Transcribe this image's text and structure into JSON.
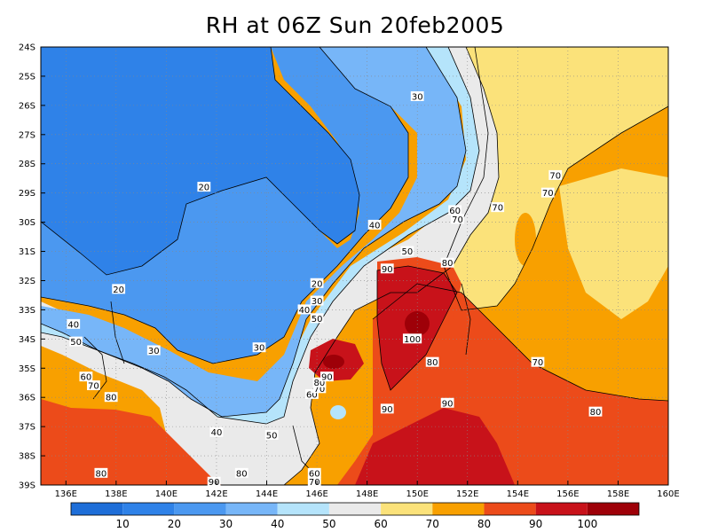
{
  "chart_data": {
    "type": "heatmap",
    "title": "RH at 06Z Sun 20feb2005",
    "x_ticks": [
      "136E",
      "138E",
      "140E",
      "142E",
      "144E",
      "146E",
      "148E",
      "150E",
      "152E",
      "154E",
      "156E",
      "158E",
      "160E"
    ],
    "y_ticks": [
      "24S",
      "25S",
      "26S",
      "27S",
      "28S",
      "29S",
      "30S",
      "31S",
      "32S",
      "33S",
      "34S",
      "35S",
      "36S",
      "37S",
      "38S",
      "39S"
    ],
    "xlim": [
      135,
      160
    ],
    "ylim": [
      -39,
      -24
    ],
    "grid": true,
    "colorbar": {
      "labels": [
        "10",
        "20",
        "30",
        "40",
        "50",
        "60",
        "70",
        "80",
        "90",
        "100"
      ],
      "bands": [
        {
          "range": [
            0,
            10
          ],
          "color": "#1e6ed8"
        },
        {
          "range": [
            10,
            20
          ],
          "color": "#2f82e8"
        },
        {
          "range": [
            20,
            30
          ],
          "color": "#4b98f0"
        },
        {
          "range": [
            30,
            40
          ],
          "color": "#77b6f8"
        },
        {
          "range": [
            40,
            50
          ],
          "color": "#b5e4fb"
        },
        {
          "range": [
            50,
            60
          ],
          "color": "#eaeaea"
        },
        {
          "range": [
            60,
            70
          ],
          "color": "#fbe27a"
        },
        {
          "range": [
            70,
            80
          ],
          "color": "#f8a000"
        },
        {
          "range": [
            80,
            90
          ],
          "color": "#ec4b1a"
        },
        {
          "range": [
            90,
            100
          ],
          "color": "#c8121a"
        },
        {
          "range": [
            100,
            110
          ],
          "color": "#9e0008"
        }
      ]
    },
    "contour_labels": [
      {
        "text": "30",
        "lon": 150.0,
        "lat": -25.7
      },
      {
        "text": "20",
        "lon": 141.5,
        "lat": -28.8
      },
      {
        "text": "20",
        "lon": 138.1,
        "lat": -32.3
      },
      {
        "text": "20",
        "lon": 146.0,
        "lat": -32.1
      },
      {
        "text": "30",
        "lon": 143.7,
        "lat": -34.3
      },
      {
        "text": "30",
        "lon": 139.5,
        "lat": -34.4
      },
      {
        "text": "30",
        "lon": 146.0,
        "lat": -32.7
      },
      {
        "text": "40",
        "lon": 148.3,
        "lat": -30.1
      },
      {
        "text": "40",
        "lon": 145.5,
        "lat": -33.0
      },
      {
        "text": "40",
        "lon": 136.3,
        "lat": -33.5
      },
      {
        "text": "40",
        "lon": 142.0,
        "lat": -37.2
      },
      {
        "text": "50",
        "lon": 149.6,
        "lat": -31.0
      },
      {
        "text": "50",
        "lon": 146.0,
        "lat": -33.3
      },
      {
        "text": "50",
        "lon": 136.4,
        "lat": -34.1
      },
      {
        "text": "50",
        "lon": 144.2,
        "lat": -37.3
      },
      {
        "text": "60",
        "lon": 151.5,
        "lat": -29.6
      },
      {
        "text": "60",
        "lon": 136.8,
        "lat": -35.3
      },
      {
        "text": "60",
        "lon": 145.8,
        "lat": -35.9
      },
      {
        "text": "60",
        "lon": 145.9,
        "lat": -38.6
      },
      {
        "text": "70",
        "lon": 151.6,
        "lat": -29.9
      },
      {
        "text": "70",
        "lon": 155.5,
        "lat": -28.4
      },
      {
        "text": "70",
        "lon": 155.2,
        "lat": -29.0
      },
      {
        "text": "70",
        "lon": 153.2,
        "lat": -29.5
      },
      {
        "text": "70",
        "lon": 137.1,
        "lat": -35.6
      },
      {
        "text": "70",
        "lon": 146.1,
        "lat": -35.7
      },
      {
        "text": "70",
        "lon": 154.8,
        "lat": -34.8
      },
      {
        "text": "70",
        "lon": 145.9,
        "lat": -38.9
      },
      {
        "text": "80",
        "lon": 151.2,
        "lat": -31.4
      },
      {
        "text": "80",
        "lon": 137.8,
        "lat": -36.0
      },
      {
        "text": "80",
        "lon": 146.1,
        "lat": -35.5
      },
      {
        "text": "80",
        "lon": 150.6,
        "lat": -34.8
      },
      {
        "text": "80",
        "lon": 157.1,
        "lat": -36.5
      },
      {
        "text": "80",
        "lon": 137.4,
        "lat": -38.6
      },
      {
        "text": "80",
        "lon": 143.0,
        "lat": -38.6
      },
      {
        "text": "90",
        "lon": 148.8,
        "lat": -31.6
      },
      {
        "text": "90",
        "lon": 146.4,
        "lat": -35.3
      },
      {
        "text": "90",
        "lon": 148.8,
        "lat": -36.4
      },
      {
        "text": "90",
        "lon": 151.2,
        "lat": -36.2
      },
      {
        "text": "90",
        "lon": 141.9,
        "lat": -38.9
      },
      {
        "text": "100",
        "lon": 149.8,
        "lat": -34.0
      }
    ]
  }
}
